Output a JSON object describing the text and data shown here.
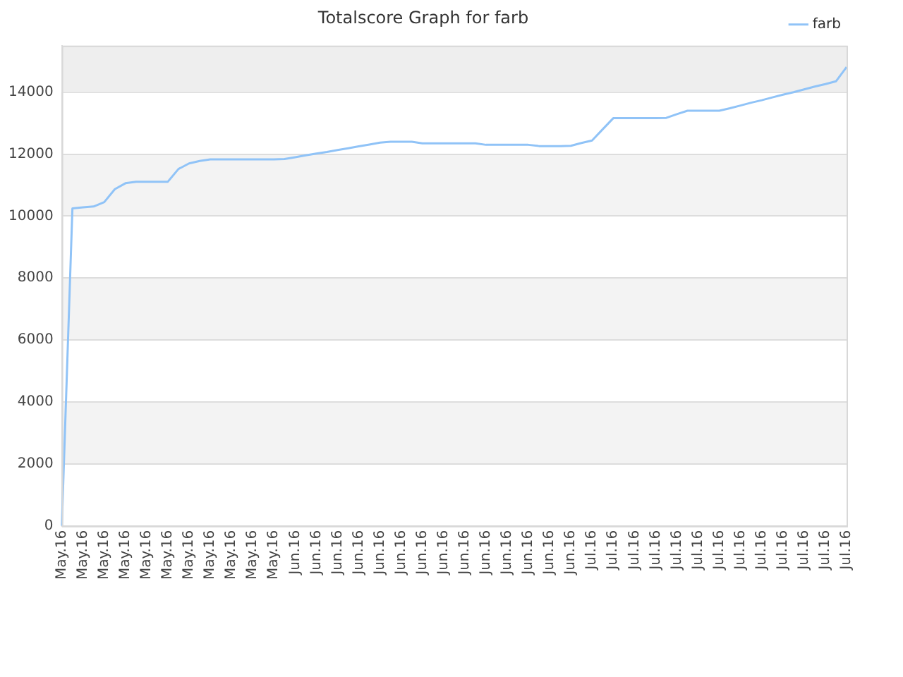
{
  "chart_data": {
    "type": "line",
    "title": "Totalscore Graph for farb",
    "categories": [
      "May.16",
      null,
      "May.16",
      null,
      "May.16",
      null,
      "May.16",
      null,
      "May.16",
      null,
      "May.16",
      null,
      "May.16",
      null,
      "May.16",
      null,
      "May.16",
      null,
      "May.16",
      null,
      "May.16",
      null,
      "Jun.16",
      null,
      "Jun.16",
      null,
      "Jun.16",
      null,
      "Jun.16",
      null,
      "Jun.16",
      null,
      "Jun.16",
      null,
      "Jun.16",
      null,
      "Jun.16",
      null,
      "Jun.16",
      null,
      "Jun.16",
      null,
      "Jun.16",
      null,
      "Jun.16",
      null,
      "Jun.16",
      null,
      "Jun.16",
      null,
      "Jul.16",
      null,
      "Jul.16",
      null,
      "Jul.16",
      null,
      "Jul.16",
      null,
      "Jul.16",
      null,
      "Jul.16",
      null,
      "Jul.16",
      null,
      "Jul.16",
      null,
      "Jul.16",
      null,
      "Jul.16",
      null,
      "Jul.16",
      null,
      "Jul.16",
      null,
      "Jul.16"
    ],
    "series": [
      {
        "name": "farb",
        "color": "#90c3f7",
        "values": [
          0,
          10250,
          10280,
          10310,
          10450,
          10870,
          11060,
          11110,
          11110,
          11110,
          11110,
          11520,
          11700,
          11780,
          11830,
          11830,
          11830,
          11830,
          11830,
          11830,
          11830,
          11840,
          11900,
          11960,
          12020,
          12070,
          12130,
          12190,
          12250,
          12310,
          12370,
          12400,
          12400,
          12400,
          12350,
          12350,
          12350,
          12350,
          12350,
          12350,
          12300,
          12300,
          12300,
          12300,
          12300,
          12260,
          12260,
          12260,
          12270,
          12360,
          12440,
          12800,
          13160,
          13160,
          13160,
          13160,
          13160,
          13170,
          13290,
          13400,
          13400,
          13400,
          13400,
          13480,
          13570,
          13660,
          13740,
          13830,
          13920,
          14000,
          14090,
          14180,
          14260,
          14350,
          14810
        ]
      }
    ],
    "ylim": [
      0,
      15500
    ],
    "yticks": [
      0,
      2000,
      4000,
      6000,
      8000,
      10000,
      12000,
      14000
    ],
    "bands": [
      {
        "axis": "y",
        "from": 14000,
        "to": 15500,
        "color": "#eeeeee"
      }
    ],
    "grid": "y",
    "legend": "top right",
    "marker": "none",
    "line_style": "solid"
  }
}
